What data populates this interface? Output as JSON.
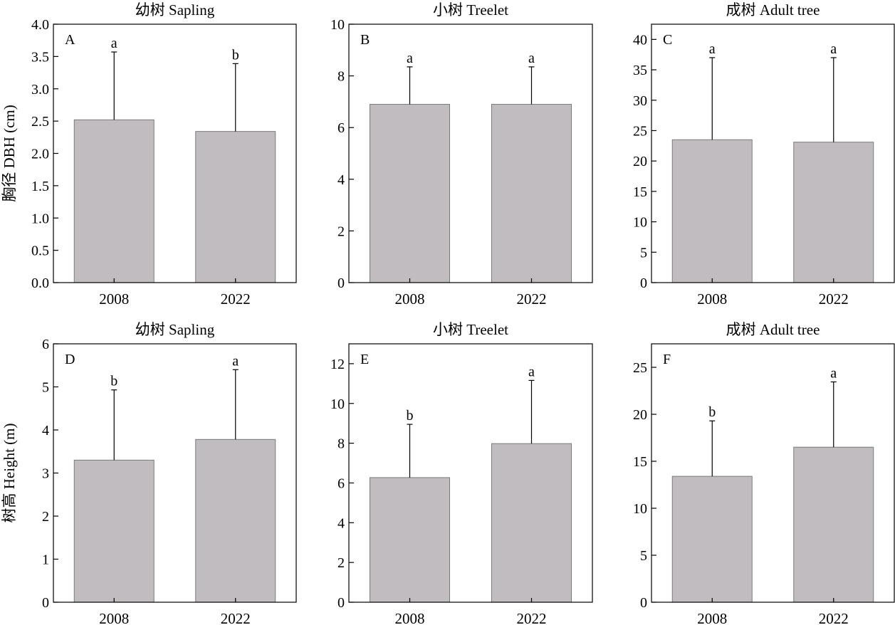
{
  "chart_data": [
    {
      "type": "bar",
      "panel_label": "A",
      "title": "幼树 Sapling",
      "ylabel": "胸径 DBH (cm)",
      "xlabel": "",
      "categories": [
        "2008",
        "2022"
      ],
      "values": [
        2.52,
        2.34
      ],
      "errors": [
        1.05,
        1.05
      ],
      "significance": [
        "a",
        "b"
      ],
      "ylim": [
        0,
        4
      ],
      "yticks": [
        0,
        0.5,
        1,
        1.5,
        2,
        2.5,
        3,
        3.5,
        4
      ],
      "ytick_labels": [
        "0.0",
        "0.5",
        "1.0",
        "1.5",
        "2.0",
        "2.5",
        "3.0",
        "3.5",
        "4.0"
      ]
    },
    {
      "type": "bar",
      "panel_label": "B",
      "title": "小树 Treelet",
      "ylabel": "",
      "xlabel": "",
      "categories": [
        "2008",
        "2022"
      ],
      "values": [
        6.9,
        6.9
      ],
      "errors": [
        1.45,
        1.45
      ],
      "significance": [
        "a",
        "a"
      ],
      "ylim": [
        0,
        10
      ],
      "yticks": [
        0,
        2,
        4,
        6,
        8,
        10
      ],
      "ytick_labels": [
        "0",
        "2",
        "4",
        "6",
        "8",
        "10"
      ]
    },
    {
      "type": "bar",
      "panel_label": "C",
      "title": "成树 Adult tree",
      "ylabel": "",
      "xlabel": "",
      "categories": [
        "2008",
        "2022"
      ],
      "values": [
        23.5,
        23.1
      ],
      "errors": [
        13.5,
        13.9
      ],
      "significance": [
        "a",
        "a"
      ],
      "ylim": [
        0,
        42.5
      ],
      "yticks": [
        0,
        5,
        10,
        15,
        20,
        25,
        30,
        35,
        40
      ],
      "ytick_labels": [
        "0",
        "5",
        "10",
        "15",
        "20",
        "25",
        "30",
        "35",
        "40"
      ]
    },
    {
      "type": "bar",
      "panel_label": "D",
      "title": "幼树 Sapling",
      "ylabel": "树高 Height (m)",
      "xlabel": "",
      "categories": [
        "2008",
        "2022"
      ],
      "values": [
        3.3,
        3.78
      ],
      "errors": [
        1.63,
        1.62
      ],
      "significance": [
        "b",
        "a"
      ],
      "ylim": [
        0,
        6
      ],
      "yticks": [
        0,
        1,
        2,
        3,
        4,
        5,
        6
      ],
      "ytick_labels": [
        "0",
        "1",
        "2",
        "3",
        "4",
        "5",
        "6"
      ]
    },
    {
      "type": "bar",
      "panel_label": "E",
      "title": "小树 Treelet",
      "ylabel": "",
      "xlabel": "",
      "categories": [
        "2008",
        "2022"
      ],
      "values": [
        6.27,
        7.98
      ],
      "errors": [
        2.68,
        3.18
      ],
      "significance": [
        "b",
        "a"
      ],
      "ylim": [
        0,
        13
      ],
      "yticks": [
        0,
        2,
        4,
        6,
        8,
        10,
        12
      ],
      "ytick_labels": [
        "0",
        "2",
        "4",
        "6",
        "8",
        "10",
        "12"
      ]
    },
    {
      "type": "bar",
      "panel_label": "F",
      "title": "成树 Adult tree",
      "ylabel": "",
      "xlabel": "",
      "categories": [
        "2008",
        "2022"
      ],
      "values": [
        13.4,
        16.5
      ],
      "errors": [
        5.9,
        6.95
      ],
      "significance": [
        "b",
        "a"
      ],
      "ylim": [
        0,
        27.5
      ],
      "yticks": [
        0,
        5,
        10,
        15,
        20,
        25
      ],
      "ytick_labels": [
        "0",
        "5",
        "10",
        "15",
        "20",
        "25"
      ]
    }
  ]
}
